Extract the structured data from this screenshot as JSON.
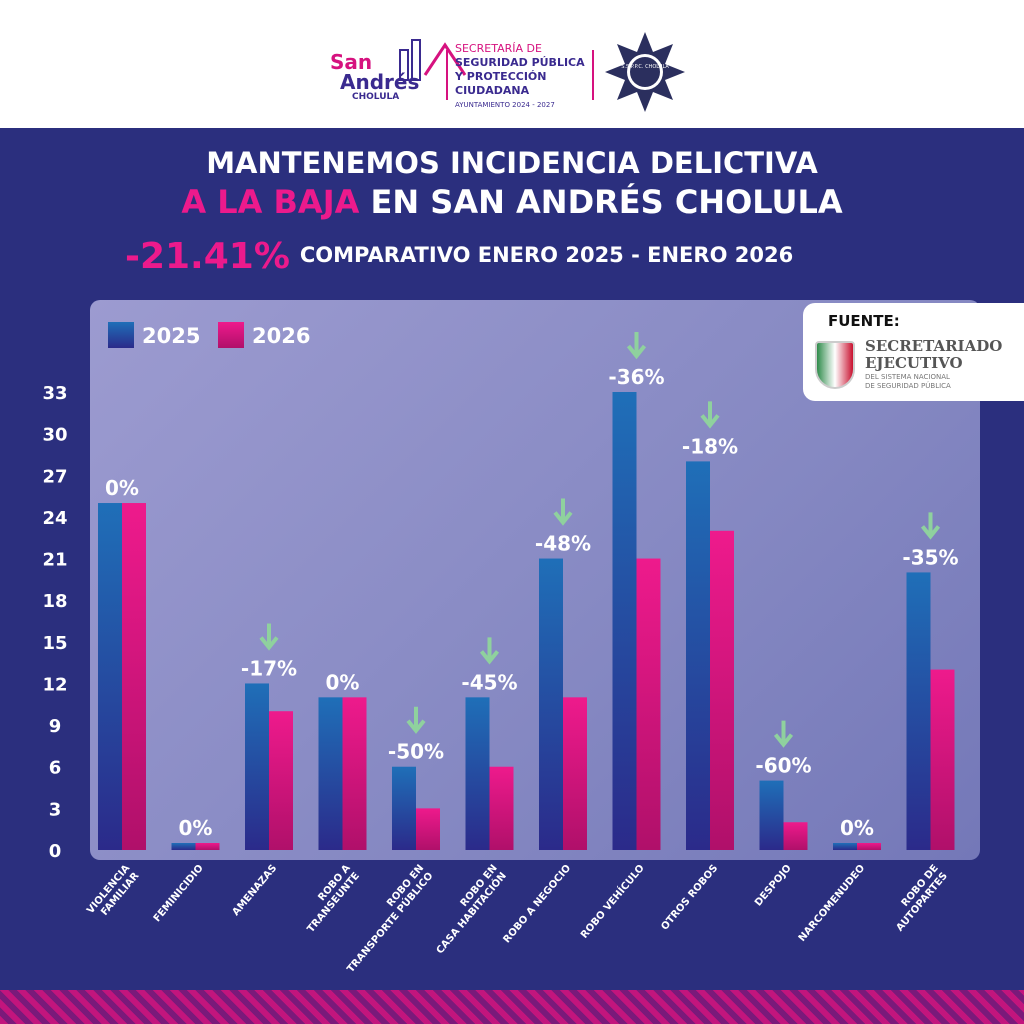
{
  "header": {
    "logo_text": [
      "San",
      "Andrés",
      "CHOLULA"
    ],
    "secretaria": [
      "SECRETARÍA DE",
      "SEGURIDAD PÚBLICA",
      "Y PROTECCIÓN",
      "CIUDADANA"
    ],
    "ayuntamiento": "AYUNTAMIENTO 2024 - 2027",
    "badge_text": "S.S.P.P.C. CHOLULA"
  },
  "title": {
    "line1": "MANTENEMOS INCIDENCIA DELICTIVA",
    "line2_highlight": "A LA BAJA",
    "line2_rest": " EN SAN ANDRÉS CHOLULA",
    "total_change": "-21.41%",
    "comparison": "COMPARATIVO ENERO 2025 - ENERO 2026"
  },
  "source": {
    "label": "FUENTE:",
    "org": [
      "SECRETARIADO",
      "EJECUTIVO"
    ],
    "org_sub": [
      "DEL SISTEMA NACIONAL",
      "DE SEGURIDAD PÚBLICA"
    ]
  },
  "colors": {
    "s2025": "#2b3a9a",
    "s2026": "#e5097f",
    "arrow": "#8fd19e",
    "background": "#2b2f7e"
  },
  "chart_data": {
    "type": "bar",
    "categories": [
      "VIOLENCIA FAMILIAR",
      "FEMINICIDIO",
      "AMENAZAS",
      "ROBO A TRANSEUNTE",
      "ROBO EN TRANSPORTE PÚBLICO",
      "ROBO EN CASA HABITACIÓN",
      "ROBO A NEGOCIO",
      "ROBO VEHÍCULO",
      "OTROS ROBOS",
      "DESPOJO",
      "NARCOMENUDEO",
      "ROBO DE AUTOPARTES"
    ],
    "series": [
      {
        "name": "2025",
        "values": [
          25,
          0,
          12,
          11,
          6,
          11,
          21,
          33,
          28,
          5,
          0,
          20
        ]
      },
      {
        "name": "2026",
        "values": [
          25,
          0,
          10,
          11,
          3,
          6,
          11,
          21,
          23,
          2,
          0,
          13
        ]
      }
    ],
    "data_labels": [
      "0%",
      "0%",
      "-17%",
      "0%",
      "-50%",
      "-45%",
      "-48%",
      "-36%",
      "-18%",
      "-60%",
      "0%",
      "-35%"
    ],
    "yticks": [
      0,
      3,
      6,
      9,
      12,
      15,
      18,
      21,
      24,
      27,
      30,
      33
    ],
    "ylim": [
      0,
      33
    ],
    "legend": "top-left",
    "grid": false
  }
}
